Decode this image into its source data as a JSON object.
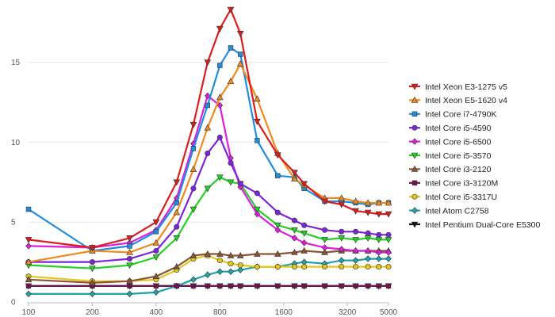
{
  "chart_data": {
    "type": "line",
    "title": "",
    "xlabel": "",
    "ylabel": "",
    "xscale": "log2",
    "xlim": [
      100,
      5000
    ],
    "ylim": [
      0,
      18.5
    ],
    "x_ticks": [
      100,
      200,
      400,
      800,
      1600,
      3200,
      5000
    ],
    "x_tick_labels": [
      "100",
      "200",
      "400",
      "800",
      "1600",
      "3200",
      "5000"
    ],
    "y_ticks": [
      0,
      5,
      10,
      15
    ],
    "y_tick_labels": [
      "0",
      "5",
      "10",
      "15"
    ],
    "legend_position": "right",
    "x": [
      100,
      200,
      300,
      400,
      500,
      600,
      700,
      800,
      900,
      1000,
      1200,
      1500,
      1800,
      2000,
      2500,
      3000,
      3500,
      4000,
      4500,
      5000
    ],
    "series": [
      {
        "name": "Intel Xeon E3-1275 v5",
        "color": "#dd1c1c",
        "marker": "tri-down",
        "values": [
          3.9,
          3.4,
          4.0,
          5.0,
          7.5,
          11.1,
          15.0,
          17.1,
          18.3,
          16.8,
          11.3,
          9.2,
          8.1,
          7.4,
          6.3,
          6.1,
          5.7,
          5.6,
          5.5,
          5.5
        ]
      },
      {
        "name": "Intel Xeon E5-1620 v4",
        "color": "#f08a1e",
        "marker": "tri-up",
        "values": [
          2.5,
          3.2,
          3.1,
          3.7,
          5.6,
          8.3,
          10.9,
          12.8,
          13.8,
          14.9,
          12.7,
          9.3,
          7.7,
          7.3,
          6.5,
          6.5,
          6.3,
          6.2,
          6.2,
          6.2
        ]
      },
      {
        "name": "Intel Core i7-4790K",
        "color": "#1e8fe0",
        "marker": "square",
        "values": [
          5.8,
          3.2,
          3.5,
          4.4,
          6.2,
          9.6,
          12.3,
          14.8,
          15.9,
          15.5,
          10.1,
          7.9,
          7.8,
          7.1,
          6.3,
          6.3,
          6.2,
          6.1,
          6.2,
          6.2
        ]
      },
      {
        "name": "Intel Core i5-4590",
        "color": "#7b24d9",
        "marker": "circle",
        "values": [
          2.5,
          2.5,
          2.7,
          3.2,
          4.7,
          7.1,
          9.3,
          10.3,
          8.7,
          7.4,
          6.8,
          5.6,
          5.1,
          4.8,
          4.5,
          4.4,
          4.4,
          4.3,
          4.2,
          4.2
        ]
      },
      {
        "name": "Intel Core i5-6500",
        "color": "#e01ee0",
        "marker": "diamond",
        "values": [
          3.5,
          3.4,
          3.7,
          4.5,
          6.5,
          9.9,
          12.9,
          12.3,
          9.0,
          7.2,
          5.5,
          4.5,
          4.0,
          3.7,
          3.4,
          3.3,
          3.2,
          3.2,
          3.1,
          3.1
        ]
      },
      {
        "name": "Intel Core i5-3570",
        "color": "#24d024",
        "marker": "tri-down",
        "values": [
          2.3,
          2.1,
          2.3,
          2.8,
          4.0,
          5.8,
          7.1,
          7.8,
          7.5,
          7.4,
          5.8,
          4.8,
          4.5,
          4.3,
          3.9,
          4.0,
          3.9,
          4.0,
          3.9,
          3.9
        ]
      },
      {
        "name": "Intel Core i3-2120",
        "color": "#8a5436",
        "marker": "tri-up",
        "values": [
          1.4,
          1.2,
          1.3,
          1.6,
          2.2,
          2.9,
          3.0,
          3.0,
          2.9,
          2.9,
          3.0,
          3.0,
          3.1,
          3.2,
          3.1,
          3.2,
          3.2,
          3.2,
          3.2,
          3.2
        ]
      },
      {
        "name": "Intel Core i3-3120M",
        "color": "#6e1450",
        "marker": "square",
        "values": [
          1.0,
          1.0,
          1.0,
          1.0,
          1.0,
          1.0,
          1.0,
          1.0,
          1.0,
          1.0,
          1.0,
          1.0,
          1.0,
          1.0,
          1.0,
          1.0,
          1.0,
          1.0,
          1.0,
          1.0
        ]
      },
      {
        "name": "Intel Core i5-3317U",
        "color": "#e6c619",
        "marker": "circle",
        "values": [
          1.6,
          1.3,
          1.3,
          1.4,
          2.0,
          2.7,
          2.9,
          2.6,
          2.4,
          2.3,
          2.2,
          2.2,
          2.2,
          2.2,
          2.2,
          2.2,
          2.2,
          2.2,
          2.2,
          2.2
        ]
      },
      {
        "name": "Intel Atom C2758",
        "color": "#1ea3a8",
        "marker": "diamond",
        "values": [
          0.5,
          0.5,
          0.5,
          0.6,
          1.0,
          1.4,
          1.7,
          1.9,
          1.9,
          2.0,
          2.2,
          2.2,
          2.4,
          2.5,
          2.4,
          2.6,
          2.6,
          2.7,
          2.7,
          2.7
        ]
      },
      {
        "name": "Intel Pentium Dual-Core E5300",
        "color": "#111111",
        "marker": "tri-down",
        "values": [
          1.0,
          1.0,
          1.0,
          1.0,
          1.0,
          1.0,
          1.0,
          1.0,
          1.0,
          1.0,
          1.0,
          1.0,
          1.0,
          1.0,
          1.0,
          1.0,
          1.0,
          1.0,
          1.0,
          1.0
        ]
      }
    ]
  }
}
